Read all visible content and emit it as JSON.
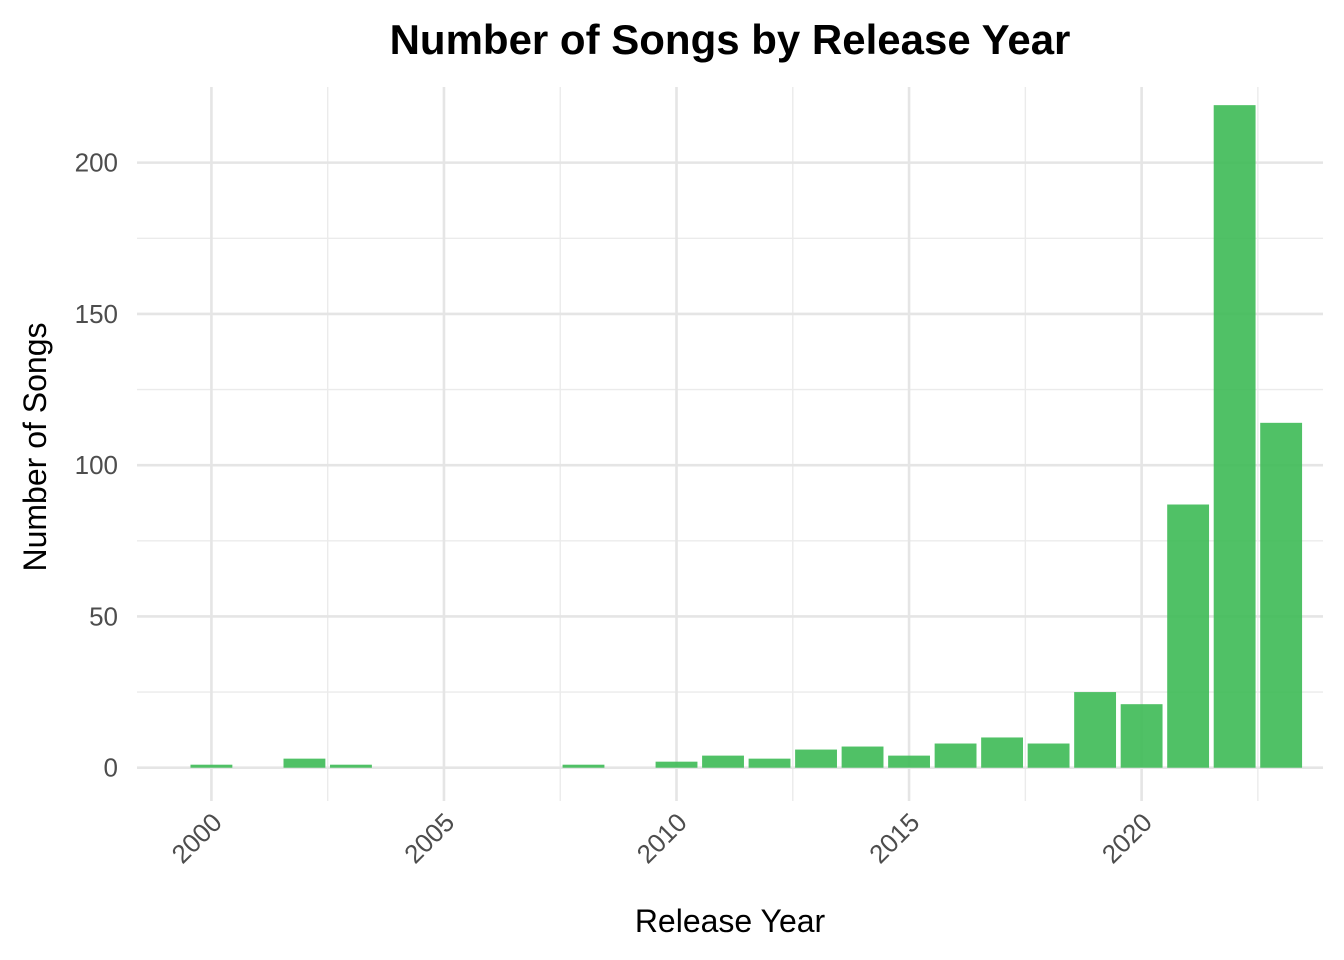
{
  "chart_data": {
    "type": "bar",
    "title": "Number of Songs by Release Year",
    "xlabel": "Release Year",
    "ylabel": "Number of Songs",
    "bar_color": "#3dba55",
    "x_ticks": [
      2000,
      2005,
      2010,
      2015,
      2020
    ],
    "y_ticks": [
      0,
      50,
      100,
      150,
      200
    ],
    "xlim": [
      1998.4,
      2023.9
    ],
    "ylim": [
      -11,
      225
    ],
    "grid": true,
    "legend": "none",
    "x": [
      2000,
      2002,
      2003,
      2008,
      2010,
      2011,
      2012,
      2013,
      2014,
      2015,
      2016,
      2017,
      2018,
      2019,
      2020,
      2021,
      2022,
      2023
    ],
    "values": [
      1,
      3,
      1,
      1,
      2,
      4,
      3,
      6,
      7,
      4,
      8,
      10,
      8,
      25,
      21,
      87,
      219,
      114
    ]
  }
}
